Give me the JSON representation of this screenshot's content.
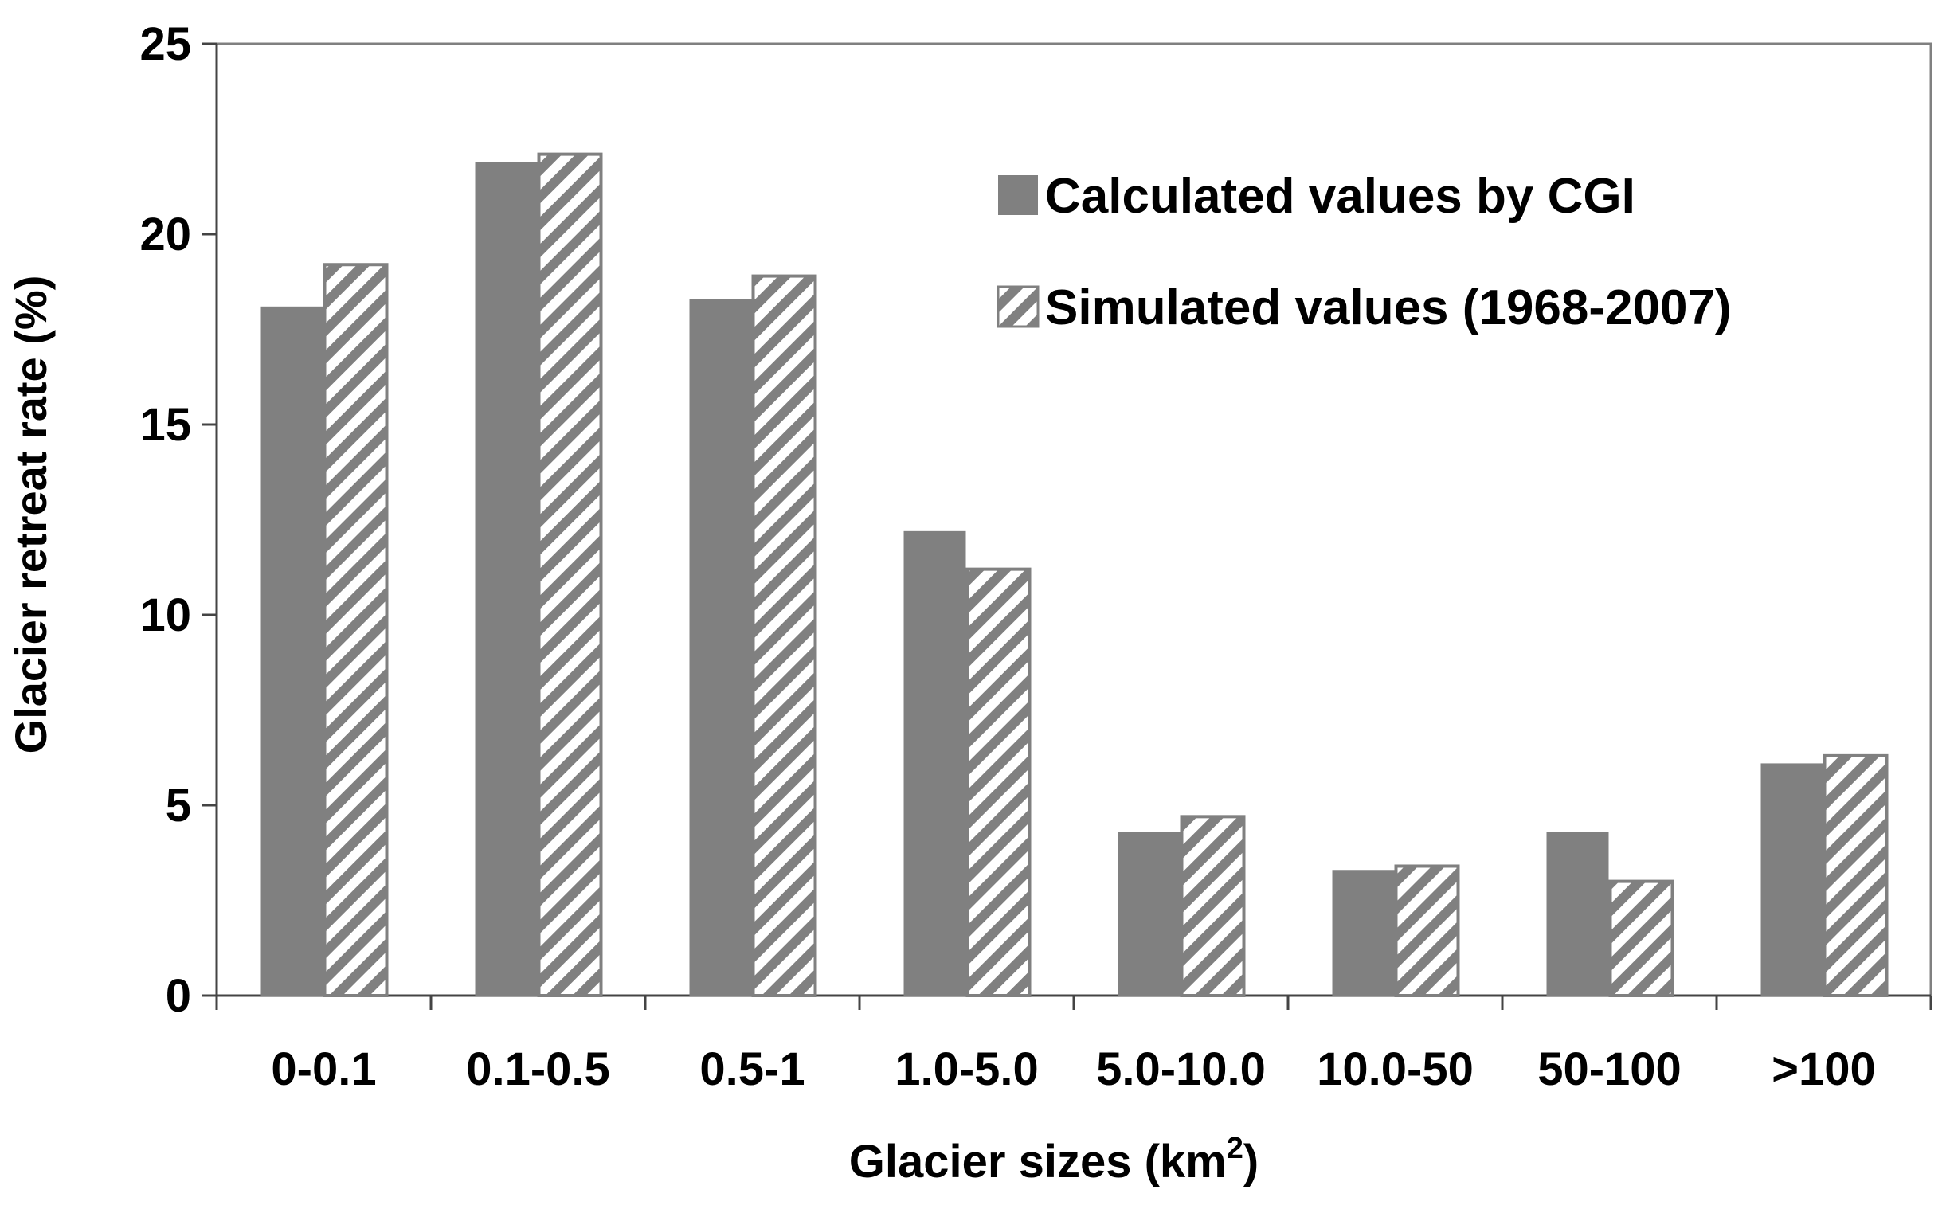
{
  "chart_data": {
    "type": "bar",
    "categories": [
      "0-0.1",
      "0.1-0.5",
      "0.5-1",
      "1.0-5.0",
      "5.0-10.0",
      "10.0-50",
      "50-100",
      ">100"
    ],
    "series": [
      {
        "name": "Calculated values by CGI",
        "values": [
          18.1,
          21.9,
          18.3,
          12.2,
          4.3,
          3.3,
          4.3,
          6.1
        ],
        "fill": "solid",
        "color": "#808080"
      },
      {
        "name": "Simulated values (1968-2007)",
        "values": [
          19.2,
          22.1,
          18.9,
          11.2,
          4.7,
          3.4,
          3.0,
          6.3
        ],
        "fill": "diagonal-stripes",
        "color": "#808080"
      }
    ],
    "xlabel": "Glacier sizes (km",
    "xlabel_superscript": "2",
    "xlabel_suffix": ")",
    "ylabel": "Glacier retreat rate (%)",
    "ylim": [
      0,
      25
    ],
    "yticks": [
      0,
      5,
      10,
      15,
      20,
      25
    ],
    "grid": false,
    "legend_position": "top-right"
  }
}
